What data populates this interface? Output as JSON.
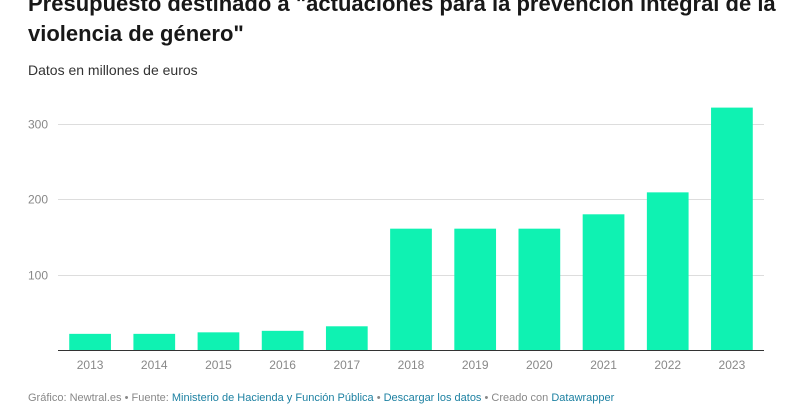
{
  "header": {
    "title": "Presupuesto destinado a \"actuaciones para la prevención integral de la violencia de género\"",
    "subtitle": "Datos en millones de euros"
  },
  "footer": {
    "prefix": "Gráfico: Newtral.es • Fuente: ",
    "source_link": "Ministerio de Hacienda y Función Pública",
    "sep1": " • ",
    "download_link": "Descargar los datos",
    "sep2": " • Creado con ",
    "tool_link": "Datawrapper"
  },
  "colors": {
    "bar": "#0ff2b2",
    "grid": "#dddddd",
    "axis": "#333333",
    "tick_label": "#888888"
  },
  "chart_data": {
    "type": "bar",
    "title": "Presupuesto destinado a \"actuaciones para la prevención integral de la violencia de género\"",
    "subtitle": "Datos en millones de euros",
    "xlabel": "",
    "ylabel": "",
    "categories": [
      "2013",
      "2014",
      "2015",
      "2016",
      "2017",
      "2018",
      "2019",
      "2020",
      "2021",
      "2022",
      "2023"
    ],
    "values": [
      22,
      22,
      24,
      26,
      32,
      161,
      161,
      161,
      180,
      209,
      321
    ],
    "ylim": [
      0,
      320
    ],
    "yticks": [
      100,
      200,
      300
    ],
    "grid": true,
    "legend": "none"
  }
}
